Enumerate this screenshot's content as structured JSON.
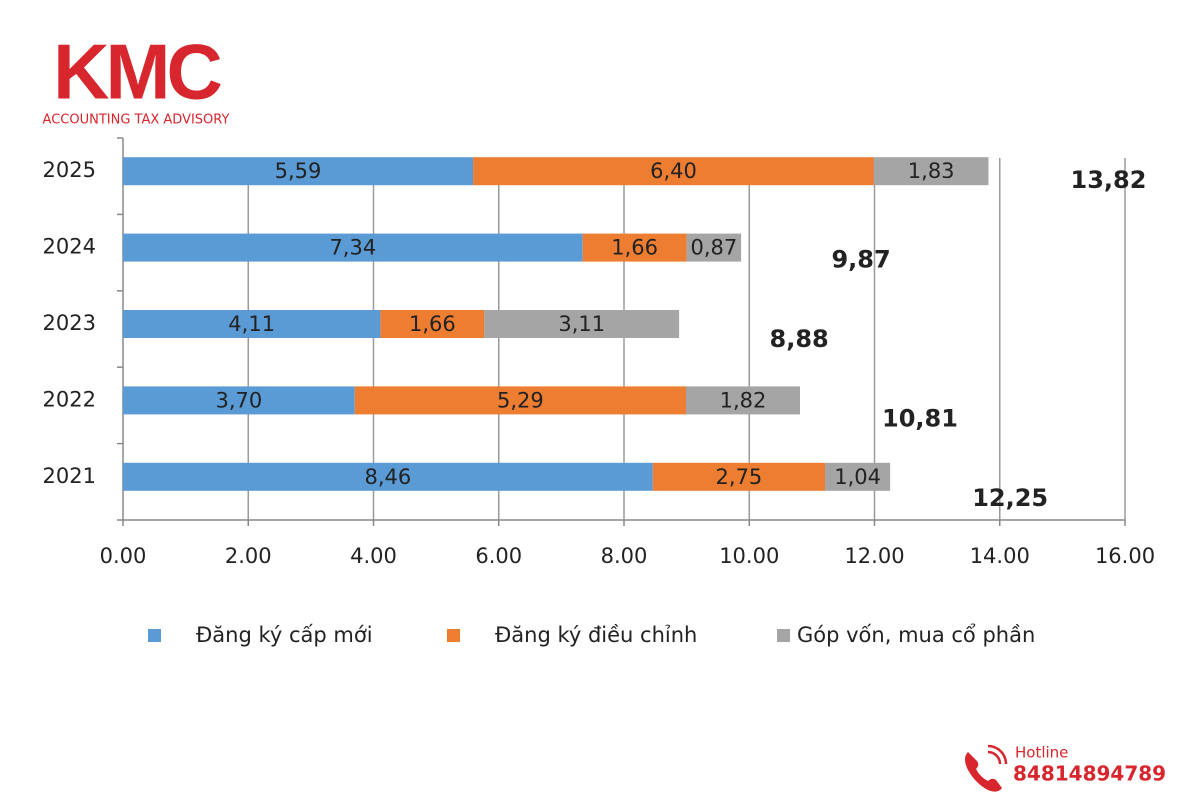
{
  "logo": {
    "name": "KMC",
    "tagline": "ACCOUNTING TAX ADVISORY"
  },
  "hotline": {
    "label": "Hotline",
    "number": "84814894789"
  },
  "chart_data": {
    "type": "bar",
    "orientation": "horizontal",
    "stacked": true,
    "categories": [
      "2025",
      "2024",
      "2023",
      "2022",
      "2021"
    ],
    "series": [
      {
        "name": "Đăng ký cấp mới",
        "color": "#5b9bd5",
        "values": [
          5.59,
          7.34,
          4.11,
          3.7,
          8.46
        ],
        "value_labels": [
          "5,59",
          "7,34",
          "4,11",
          "3,70",
          "8,46"
        ]
      },
      {
        "name": "Đăng ký điều chỉnh",
        "color": "#ed7d31",
        "values": [
          6.4,
          1.66,
          1.66,
          5.29,
          2.75
        ],
        "value_labels": [
          "6,40",
          "1,66",
          "1,66",
          "5,29",
          "2,75"
        ]
      },
      {
        "name": "Góp vốn, mua cổ phần",
        "color": "#a5a5a5",
        "values": [
          1.83,
          0.87,
          3.11,
          1.82,
          1.04
        ],
        "value_labels": [
          "1,83",
          "0,87",
          "3,11",
          "1,82",
          "1,04"
        ]
      }
    ],
    "totals": {
      "values": [
        13.82,
        9.87,
        8.88,
        10.81,
        12.25
      ],
      "value_labels": [
        "13,82",
        "9,87",
        "8,88",
        "10,81",
        "12,25"
      ]
    },
    "xlim": [
      0,
      16
    ],
    "xticks": [
      {
        "value": 0,
        "label": "0.00"
      },
      {
        "value": 2,
        "label": "2.00"
      },
      {
        "value": 4,
        "label": "4.00"
      },
      {
        "value": 6,
        "label": "6.00"
      },
      {
        "value": 8,
        "label": "8.00"
      },
      {
        "value": 10,
        "label": "10.00"
      },
      {
        "value": 12,
        "label": "12.00"
      },
      {
        "value": 14,
        "label": "14.00"
      },
      {
        "value": 16,
        "label": "16.00"
      }
    ],
    "grid": true,
    "legend": "bottom"
  }
}
